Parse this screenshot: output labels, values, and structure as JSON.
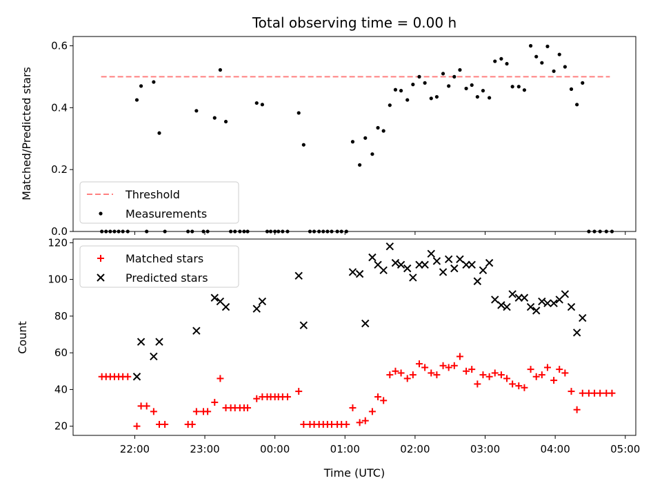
{
  "chart_data": {
    "title": "Total observing time = 0.00 h",
    "xlabel": "Time (UTC)",
    "x_unit": "hours since 22:00 UTC (negative = before 22:00)",
    "xlim": [
      -0.88,
      7.15
    ],
    "x_ticks": [
      {
        "value": 0,
        "label": "22:00"
      },
      {
        "value": 1,
        "label": "23:00"
      },
      {
        "value": 2,
        "label": "00:00"
      },
      {
        "value": 3,
        "label": "01:00"
      },
      {
        "value": 4,
        "label": "02:00"
      },
      {
        "value": 5,
        "label": "03:00"
      },
      {
        "value": 6,
        "label": "04:00"
      },
      {
        "value": 7,
        "label": "05:00"
      }
    ],
    "panels": [
      {
        "type": "scatter",
        "ylabel": "Matched/Predicted stars",
        "ylim": [
          0,
          0.63
        ],
        "y_ticks": [
          0,
          0.2,
          0.4,
          0.6
        ],
        "y_tick_labels": [
          "0.0",
          "0.2",
          "0.4",
          "0.6"
        ],
        "legend": {
          "placement": "lower-left",
          "entries": [
            "Threshold",
            "Measurements"
          ]
        },
        "series": [
          {
            "name": "Threshold",
            "kind": "dashed-line",
            "color": "#ff7f7f",
            "x": [
              -0.48,
              6.78
            ],
            "y": [
              0.5,
              0.5
            ]
          },
          {
            "name": "Measurements",
            "kind": "dot",
            "color": "#000000",
            "points": [
              [
                -0.47,
                0
              ],
              [
                -0.41,
                0
              ],
              [
                -0.35,
                0
              ],
              [
                -0.29,
                0
              ],
              [
                -0.23,
                0
              ],
              [
                -0.17,
                0
              ],
              [
                -0.1,
                0
              ],
              [
                0.03,
                0.425
              ],
              [
                0.09,
                0.47
              ],
              [
                0.17,
                0
              ],
              [
                0.27,
                0.483
              ],
              [
                0.35,
                0.318
              ],
              [
                0.43,
                0
              ],
              [
                0.76,
                0
              ],
              [
                0.82,
                0
              ],
              [
                0.88,
                0.39
              ],
              [
                0.98,
                0
              ],
              [
                1.04,
                0
              ],
              [
                1.14,
                0.367
              ],
              [
                1.22,
                0.522
              ],
              [
                1.3,
                0.355
              ],
              [
                1.37,
                0
              ],
              [
                1.43,
                0
              ],
              [
                1.5,
                0
              ],
              [
                1.56,
                0
              ],
              [
                1.61,
                0
              ],
              [
                1.74,
                0.415
              ],
              [
                1.82,
                0.41
              ],
              [
                1.89,
                0
              ],
              [
                1.94,
                0
              ],
              [
                2.0,
                0
              ],
              [
                2.05,
                0
              ],
              [
                2.11,
                0
              ],
              [
                2.18,
                0
              ],
              [
                2.34,
                0.383
              ],
              [
                2.41,
                0.28
              ],
              [
                2.5,
                0
              ],
              [
                2.56,
                0
              ],
              [
                2.63,
                0
              ],
              [
                2.69,
                0
              ],
              [
                2.75,
                0
              ],
              [
                2.81,
                0
              ],
              [
                2.89,
                0
              ],
              [
                2.95,
                0
              ],
              [
                3.02,
                0
              ],
              [
                3.11,
                0.29
              ],
              [
                3.21,
                0.215
              ],
              [
                3.29,
                0.302
              ],
              [
                3.39,
                0.25
              ],
              [
                3.47,
                0.335
              ],
              [
                3.55,
                0.325
              ],
              [
                3.64,
                0.408
              ],
              [
                3.72,
                0.458
              ],
              [
                3.8,
                0.455
              ],
              [
                3.89,
                0.425
              ],
              [
                3.97,
                0.475
              ],
              [
                4.06,
                0.5
              ],
              [
                4.14,
                0.48
              ],
              [
                4.23,
                0.43
              ],
              [
                4.31,
                0.435
              ],
              [
                4.4,
                0.51
              ],
              [
                4.48,
                0.47
              ],
              [
                4.56,
                0.5
              ],
              [
                4.64,
                0.522
              ],
              [
                4.73,
                0.462
              ],
              [
                4.81,
                0.473
              ],
              [
                4.89,
                0.435
              ],
              [
                4.97,
                0.455
              ],
              [
                5.06,
                0.432
              ],
              [
                5.14,
                0.55
              ],
              [
                5.23,
                0.558
              ],
              [
                5.31,
                0.542
              ],
              [
                5.39,
                0.468
              ],
              [
                5.48,
                0.468
              ],
              [
                5.56,
                0.457
              ],
              [
                5.65,
                0.6
              ],
              [
                5.73,
                0.565
              ],
              [
                5.81,
                0.545
              ],
              [
                5.89,
                0.598
              ],
              [
                5.98,
                0.518
              ],
              [
                6.06,
                0.572
              ],
              [
                6.14,
                0.532
              ],
              [
                6.23,
                0.46
              ],
              [
                6.31,
                0.41
              ],
              [
                6.39,
                0.48
              ],
              [
                6.48,
                0
              ],
              [
                6.56,
                0
              ],
              [
                6.64,
                0
              ],
              [
                6.73,
                0
              ],
              [
                6.81,
                0
              ]
            ]
          }
        ]
      },
      {
        "type": "scatter",
        "ylabel": "Count",
        "ylim": [
          15,
          122
        ],
        "y_ticks": [
          20,
          40,
          60,
          80,
          100,
          120
        ],
        "y_tick_labels": [
          "20",
          "40",
          "60",
          "80",
          "100",
          "120"
        ],
        "legend": {
          "placement": "upper-left",
          "entries": [
            "Matched stars",
            "Predicted stars"
          ]
        },
        "series": [
          {
            "name": "Matched stars",
            "kind": "plus",
            "color": "#ff0000",
            "points": [
              [
                -0.47,
                47
              ],
              [
                -0.41,
                47
              ],
              [
                -0.35,
                47
              ],
              [
                -0.29,
                47
              ],
              [
                -0.23,
                47
              ],
              [
                -0.17,
                47
              ],
              [
                -0.1,
                47
              ],
              [
                0.03,
                20
              ],
              [
                0.09,
                31
              ],
              [
                0.17,
                31
              ],
              [
                0.27,
                28
              ],
              [
                0.35,
                21
              ],
              [
                0.43,
                21
              ],
              [
                0.76,
                21
              ],
              [
                0.82,
                21
              ],
              [
                0.88,
                28
              ],
              [
                0.98,
                28
              ],
              [
                1.04,
                28
              ],
              [
                1.14,
                33
              ],
              [
                1.22,
                46
              ],
              [
                1.3,
                30
              ],
              [
                1.37,
                30
              ],
              [
                1.43,
                30
              ],
              [
                1.5,
                30
              ],
              [
                1.56,
                30
              ],
              [
                1.61,
                30
              ],
              [
                1.74,
                35
              ],
              [
                1.82,
                36
              ],
              [
                1.89,
                36
              ],
              [
                1.94,
                36
              ],
              [
                2.0,
                36
              ],
              [
                2.05,
                36
              ],
              [
                2.11,
                36
              ],
              [
                2.18,
                36
              ],
              [
                2.34,
                39
              ],
              [
                2.41,
                21
              ],
              [
                2.5,
                21
              ],
              [
                2.56,
                21
              ],
              [
                2.63,
                21
              ],
              [
                2.69,
                21
              ],
              [
                2.75,
                21
              ],
              [
                2.81,
                21
              ],
              [
                2.89,
                21
              ],
              [
                2.95,
                21
              ],
              [
                3.02,
                21
              ],
              [
                3.11,
                30
              ],
              [
                3.21,
                22
              ],
              [
                3.29,
                23
              ],
              [
                3.39,
                28
              ],
              [
                3.47,
                36
              ],
              [
                3.55,
                34
              ],
              [
                3.64,
                48
              ],
              [
                3.72,
                50
              ],
              [
                3.8,
                49
              ],
              [
                3.89,
                46
              ],
              [
                3.97,
                48
              ],
              [
                4.06,
                54
              ],
              [
                4.14,
                52
              ],
              [
                4.23,
                49
              ],
              [
                4.31,
                48
              ],
              [
                4.4,
                53
              ],
              [
                4.48,
                52
              ],
              [
                4.56,
                53
              ],
              [
                4.64,
                58
              ],
              [
                4.73,
                50
              ],
              [
                4.81,
                51
              ],
              [
                4.89,
                43
              ],
              [
                4.97,
                48
              ],
              [
                5.06,
                47
              ],
              [
                5.14,
                49
              ],
              [
                5.23,
                48
              ],
              [
                5.31,
                46
              ],
              [
                5.39,
                43
              ],
              [
                5.48,
                42
              ],
              [
                5.56,
                41
              ],
              [
                5.65,
                51
              ],
              [
                5.73,
                47
              ],
              [
                5.81,
                48
              ],
              [
                5.89,
                52
              ],
              [
                5.98,
                45
              ],
              [
                6.06,
                51
              ],
              [
                6.14,
                49
              ],
              [
                6.23,
                39
              ],
              [
                6.31,
                29
              ],
              [
                6.39,
                38
              ],
              [
                6.48,
                38
              ],
              [
                6.56,
                38
              ],
              [
                6.64,
                38
              ],
              [
                6.73,
                38
              ],
              [
                6.81,
                38
              ]
            ]
          },
          {
            "name": "Predicted stars",
            "kind": "cross",
            "color": "#000000",
            "points": [
              [
                0.03,
                47
              ],
              [
                0.09,
                66
              ],
              [
                0.27,
                58
              ],
              [
                0.35,
                66
              ],
              [
                0.88,
                72
              ],
              [
                1.14,
                90
              ],
              [
                1.22,
                88
              ],
              [
                1.3,
                85
              ],
              [
                1.74,
                84
              ],
              [
                1.82,
                88
              ],
              [
                2.34,
                102
              ],
              [
                2.41,
                75
              ],
              [
                3.11,
                104
              ],
              [
                3.21,
                103
              ],
              [
                3.29,
                76
              ],
              [
                3.39,
                112
              ],
              [
                3.47,
                108
              ],
              [
                3.55,
                105
              ],
              [
                3.64,
                118
              ],
              [
                3.72,
                109
              ],
              [
                3.8,
                108
              ],
              [
                3.89,
                106
              ],
              [
                3.97,
                101
              ],
              [
                4.06,
                108
              ],
              [
                4.14,
                108
              ],
              [
                4.23,
                114
              ],
              [
                4.31,
                110
              ],
              [
                4.4,
                104
              ],
              [
                4.48,
                111
              ],
              [
                4.56,
                106
              ],
              [
                4.64,
                111
              ],
              [
                4.73,
                108
              ],
              [
                4.81,
                108
              ],
              [
                4.89,
                99
              ],
              [
                4.97,
                105
              ],
              [
                5.06,
                109
              ],
              [
                5.14,
                89
              ],
              [
                5.23,
                86
              ],
              [
                5.31,
                85
              ],
              [
                5.39,
                92
              ],
              [
                5.48,
                90
              ],
              [
                5.56,
                90
              ],
              [
                5.65,
                85
              ],
              [
                5.73,
                83
              ],
              [
                5.81,
                88
              ],
              [
                5.89,
                87
              ],
              [
                5.98,
                87
              ],
              [
                6.06,
                89
              ],
              [
                6.14,
                92
              ],
              [
                6.23,
                85
              ],
              [
                6.31,
                71
              ],
              [
                6.39,
                79
              ]
            ]
          }
        ]
      }
    ]
  }
}
